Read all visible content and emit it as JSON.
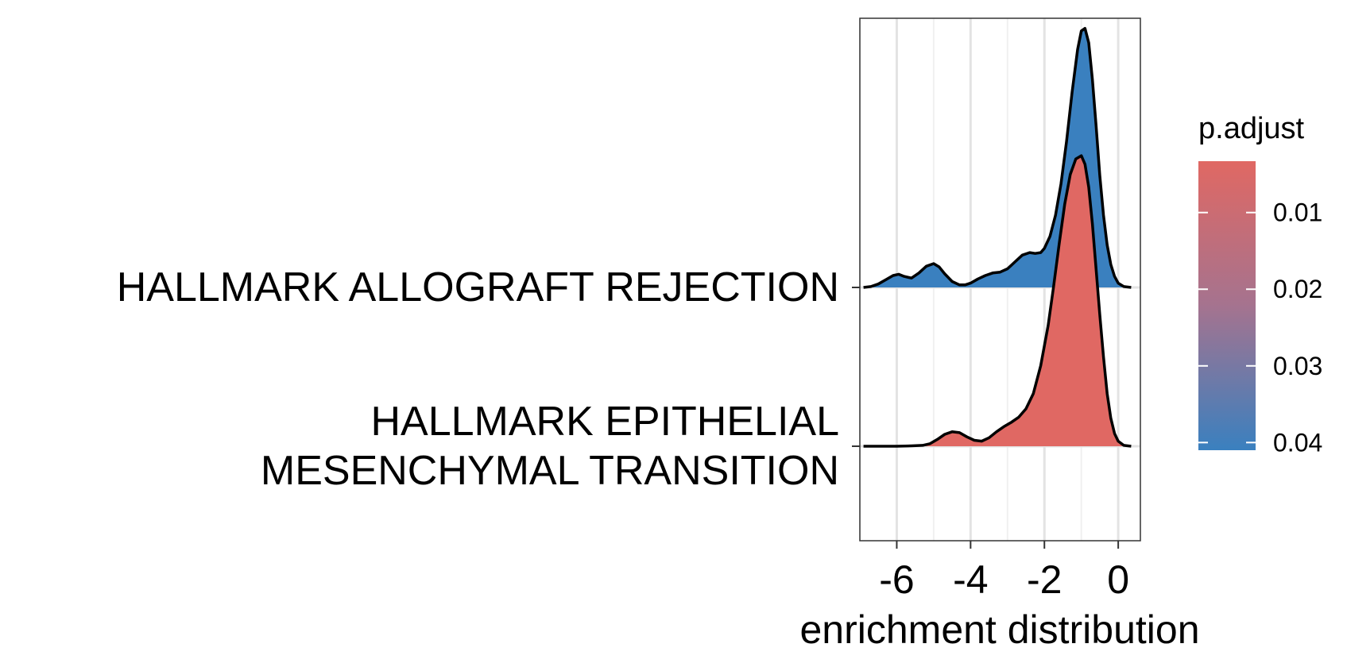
{
  "chart_data": {
    "type": "ridgeline",
    "xlabel": "enrichment distribution",
    "ylabel": "",
    "title": "",
    "xlim": [
      -7.0,
      0.6
    ],
    "xticks": [
      -6,
      -4,
      -2,
      0
    ],
    "xtick_labels": [
      "-6",
      "-4",
      "-2",
      "0"
    ],
    "minor_gridlines": [
      -7,
      -5,
      -3,
      -1
    ],
    "grid": true,
    "legend": {
      "title": "p.adjust",
      "position": "right",
      "type": "colorbar",
      "ticks": [
        0.01,
        0.02,
        0.03,
        0.04
      ],
      "tick_labels": [
        "0.01",
        "0.02",
        "0.03",
        "0.04"
      ],
      "range": [
        0.0033,
        0.041
      ],
      "color_low_value": "#e06863",
      "color_high_value": "#3a80bf"
    },
    "series": [
      {
        "name": "HALLMARK ALLOGRAFT REJECTION",
        "label_lines": [
          "HALLMARK ALLOGRAFT REJECTION"
        ],
        "p_adjust": 0.041,
        "fill": "#3a80bf",
        "baseline_index": 1,
        "density_x": [
          -6.9,
          -6.7,
          -6.5,
          -6.3,
          -6.1,
          -5.95,
          -5.8,
          -5.6,
          -5.4,
          -5.2,
          -5.0,
          -4.85,
          -4.7,
          -4.5,
          -4.3,
          -4.15,
          -4.0,
          -3.8,
          -3.6,
          -3.4,
          -3.2,
          -3.0,
          -2.8,
          -2.6,
          -2.4,
          -2.25,
          -2.1,
          -2.0,
          -1.85,
          -1.7,
          -1.55,
          -1.4,
          -1.25,
          -1.1,
          -1.0,
          -0.9,
          -0.8,
          -0.7,
          -0.6,
          -0.5,
          -0.4,
          -0.3,
          -0.2,
          -0.1,
          0.0,
          0.15,
          0.35
        ],
        "density_y": [
          0.0,
          0.01,
          0.04,
          0.09,
          0.14,
          0.155,
          0.13,
          0.11,
          0.17,
          0.25,
          0.28,
          0.24,
          0.16,
          0.07,
          0.03,
          0.03,
          0.05,
          0.1,
          0.14,
          0.17,
          0.18,
          0.22,
          0.3,
          0.38,
          0.41,
          0.4,
          0.41,
          0.46,
          0.6,
          0.85,
          1.22,
          1.72,
          2.3,
          2.8,
          3.02,
          3.05,
          2.88,
          2.45,
          1.9,
          1.32,
          0.85,
          0.5,
          0.27,
          0.13,
          0.05,
          0.01,
          0.0
        ]
      },
      {
        "name": "HALLMARK EPITHELIAL MESENCHYMAL TRANSITION",
        "label_lines": [
          "HALLMARK EPITHELIAL",
          "MESENCHYMAL TRANSITION"
        ],
        "p_adjust": 0.0033,
        "fill": "#e06863",
        "baseline_index": 0,
        "density_x": [
          -6.9,
          -6.5,
          -6.0,
          -5.6,
          -5.3,
          -5.1,
          -4.9,
          -4.7,
          -4.5,
          -4.3,
          -4.1,
          -3.9,
          -3.7,
          -3.5,
          -3.3,
          -3.1,
          -2.9,
          -2.7,
          -2.5,
          -2.3,
          -2.1,
          -1.9,
          -1.75,
          -1.6,
          -1.45,
          -1.3,
          -1.15,
          -1.0,
          -0.9,
          -0.8,
          -0.7,
          -0.6,
          -0.5,
          -0.4,
          -0.3,
          -0.2,
          -0.1,
          0.0,
          0.15,
          0.35
        ],
        "density_y": [
          0.0,
          0.0,
          0.0,
          0.005,
          0.01,
          0.03,
          0.08,
          0.14,
          0.17,
          0.16,
          0.11,
          0.07,
          0.06,
          0.1,
          0.17,
          0.23,
          0.28,
          0.34,
          0.44,
          0.62,
          0.95,
          1.42,
          1.88,
          2.38,
          2.85,
          3.2,
          3.38,
          3.42,
          3.32,
          3.05,
          2.62,
          2.08,
          1.55,
          1.05,
          0.62,
          0.33,
          0.15,
          0.06,
          0.01,
          0.0
        ]
      }
    ]
  }
}
